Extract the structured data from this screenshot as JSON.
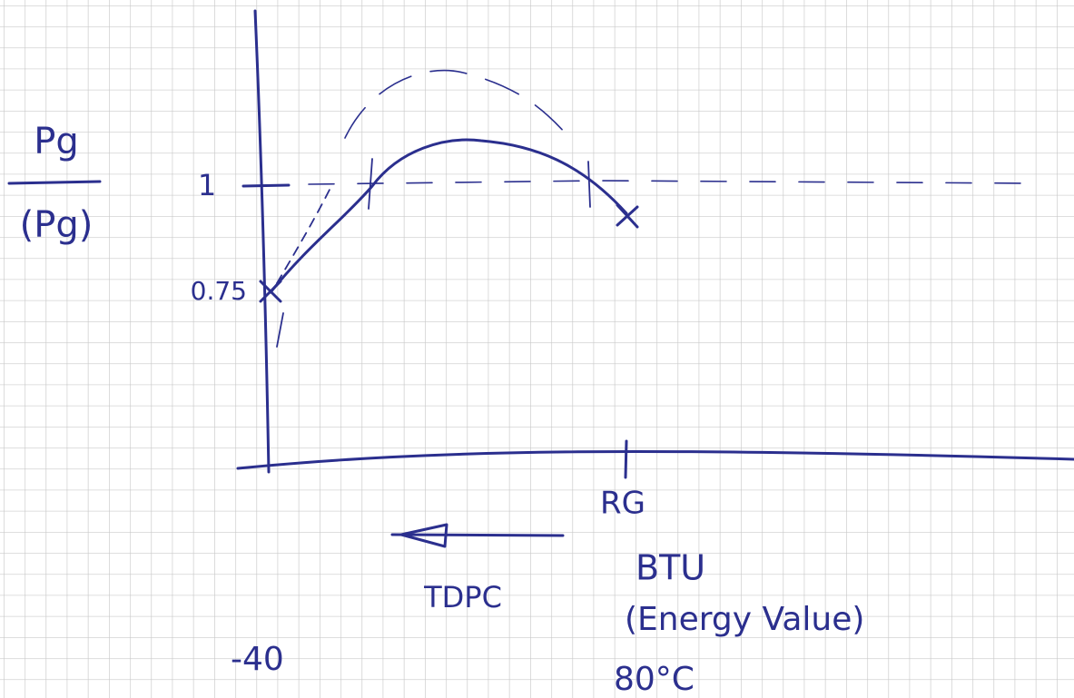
{
  "axis_labels": {
    "y_numerator": "Pg",
    "y_denominator": "(Pg)",
    "y_ticks": [
      "1",
      "0.75"
    ],
    "x_tick": "RG"
  },
  "annotations": {
    "arrow_label": "TDPC",
    "x_title": "BTU",
    "x_subtitle": "(Energy Value)",
    "left_temp": "-40",
    "right_temp": "80°C"
  }
}
